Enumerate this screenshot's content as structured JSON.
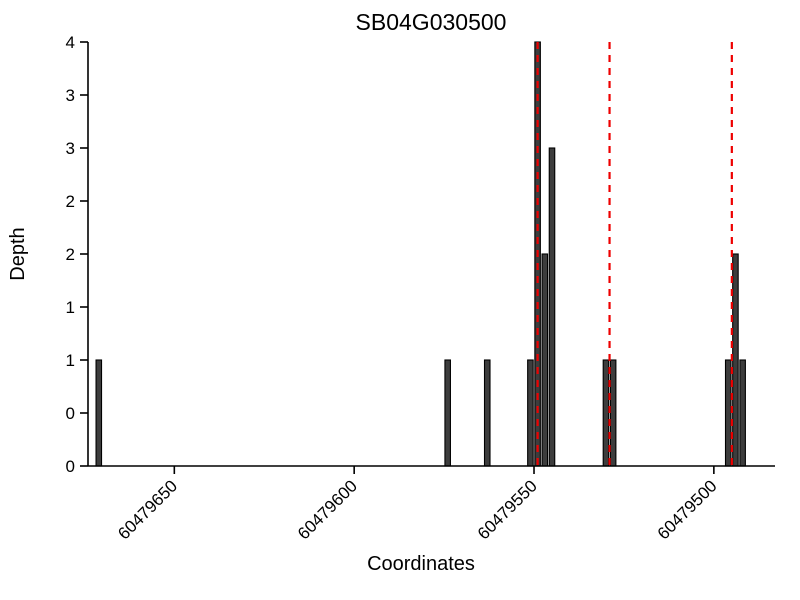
{
  "chart": {
    "title": "SB04G030500",
    "xlabel": "Coordinates",
    "ylabel": "Depth"
  },
  "chart_data": {
    "type": "bar",
    "title": "SB04G030500",
    "xlabel": "Coordinates",
    "ylabel": "Depth",
    "x_axis_reversed": true,
    "xlim": [
      60479674,
      60479483
    ],
    "ylim": [
      0,
      4
    ],
    "x_ticks": [
      60479650,
      60479600,
      60479550,
      60479500
    ],
    "x_tick_labels": [
      "60479650",
      "60479600",
      "60479550",
      "60479500"
    ],
    "y_ticks": [
      0,
      0.5,
      1,
      1.5,
      2,
      2.5,
      3,
      3.5,
      4
    ],
    "y_tick_labels": [
      "0",
      "0",
      "1",
      "1",
      "2",
      "2",
      "3",
      "3",
      "4"
    ],
    "bars": [
      {
        "x": 60479671,
        "depth": 1
      },
      {
        "x": 60479574,
        "depth": 1
      },
      {
        "x": 60479563,
        "depth": 1
      },
      {
        "x": 60479551,
        "depth": 1
      },
      {
        "x": 60479549,
        "depth": 4
      },
      {
        "x": 60479547,
        "depth": 2
      },
      {
        "x": 60479545,
        "depth": 3
      },
      {
        "x": 60479530,
        "depth": 1
      },
      {
        "x": 60479528,
        "depth": 1
      },
      {
        "x": 60479496,
        "depth": 1
      },
      {
        "x": 60479494,
        "depth": 2
      },
      {
        "x": 60479492,
        "depth": 1
      }
    ],
    "marker_lines": [
      {
        "x": 60479549,
        "style": "dashed",
        "color": "#ee0000"
      },
      {
        "x": 60479529,
        "style": "dashed",
        "color": "#ee0000"
      },
      {
        "x": 60479495,
        "style": "dashed",
        "color": "#ee0000"
      }
    ],
    "bar_color": "#3d3d3d",
    "bar_edge_color": "#000000",
    "axis_color": "#000000"
  }
}
